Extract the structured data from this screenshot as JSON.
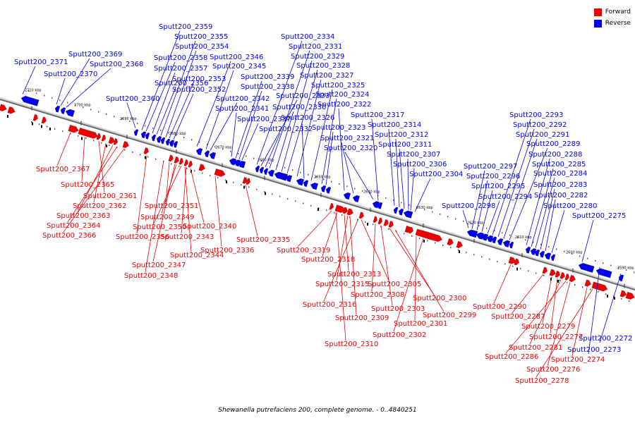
{
  "caption": "Shewanella putrefaciens 200, complete genome. - 0..4840251",
  "legend": [
    {
      "label": "Forward",
      "color": "#ee0000"
    },
    {
      "label": "Reverse",
      "color": "#0000ee"
    }
  ],
  "colors": {
    "forward": "#ee0000",
    "reverse": "#0000ee",
    "axis": "#999999"
  },
  "ticks": [
    "2710 kbp",
    "2700 kbp",
    "2690 kbp",
    "2680 kbp",
    "2670 kbp",
    "2660 kbp",
    "2650 kbp",
    "2640 kbp",
    "2630 kbp",
    "2620 kbp",
    "2610 kbp",
    "2600 kbp",
    "2590 kbp"
  ],
  "reverse_labels": [
    "Sputt200_2371",
    "Sputt200_2370",
    "Sputt200_2369",
    "Sputt200_2368",
    "Sputt200_2360",
    "Sputt200_2359",
    "Sputt200_2358",
    "Sputt200_2357",
    "Sputt200_2356",
    "Sputt200_2355",
    "Sputt200_2354",
    "Sputt200_2353",
    "Sputt200_2352",
    "Sputt200_2346",
    "Sputt200_2345",
    "Sputt200_2342",
    "Sputt200_2341",
    "Sputt200_2339",
    "Sputt200_2338",
    "Sputt200_2337",
    "Sputt200_2334",
    "Sputt200_2333",
    "Sputt200_2332",
    "Sputt200_2331",
    "Sputt200_2330",
    "Sputt200_2329",
    "Sputt200_2328",
    "Sputt200_2327",
    "Sputt200_2326",
    "Sputt200_2325",
    "Sputt200_2324",
    "Sputt200_2323",
    "Sputt200_2322",
    "Sputt200_2321",
    "Sputt200_2320",
    "Sputt200_2317",
    "Sputt200_2314",
    "Sputt200_2312",
    "Sputt200_2311",
    "Sputt200_2307",
    "Sputt200_2306",
    "Sputt200_2304",
    "Sputt200_2298",
    "Sputt200_2297",
    "Sputt200_2296",
    "Sputt200_2295",
    "Sputt200_2294",
    "Sputt200_2293",
    "Sputt200_2292",
    "Sputt200_2291",
    "Sputt200_2289",
    "Sputt200_2288",
    "Sputt200_2285",
    "Sputt200_2284",
    "Sputt200_2283",
    "Sputt200_2282",
    "Sputt200_2280",
    "Sputt200_2275",
    "Sputt200_2273",
    "Sputt200_2272"
  ],
  "forward_labels": [
    "Sputt200_2367",
    "Sputt200_2365",
    "Sputt200_2361",
    "Sputt200_2362",
    "Sputt200_2363",
    "Sputt200_2364",
    "Sputt200_2366",
    "Sputt200_2351",
    "Sputt200_2349",
    "Sputt200_2350",
    "Sputt200_2356",
    "Sputt200_2343",
    "Sputt200_2340",
    "Sputt200_2344",
    "Sputt200_2336",
    "Sputt200_2347",
    "Sputt200_2348",
    "Sputt200_2335",
    "Sputt200_2319",
    "Sputt200_2318",
    "Sputt200_2313",
    "Sputt200_2315",
    "Sputt200_2305",
    "Sputt200_2308",
    "Sputt200_2316",
    "Sputt200_2303",
    "Sputt200_2309",
    "Sputt200_2300",
    "Sputt200_2299",
    "Sputt200_2301",
    "Sputt200_2302",
    "Sputt200_2310",
    "Sputt200_2290",
    "Sputt200_2287",
    "Sputt200_2279",
    "Sputt200_2277",
    "Sputt200_2281",
    "Sputt200_2286",
    "Sputt200_2276",
    "Sputt200_2274",
    "Sputt200_2278"
  ]
}
